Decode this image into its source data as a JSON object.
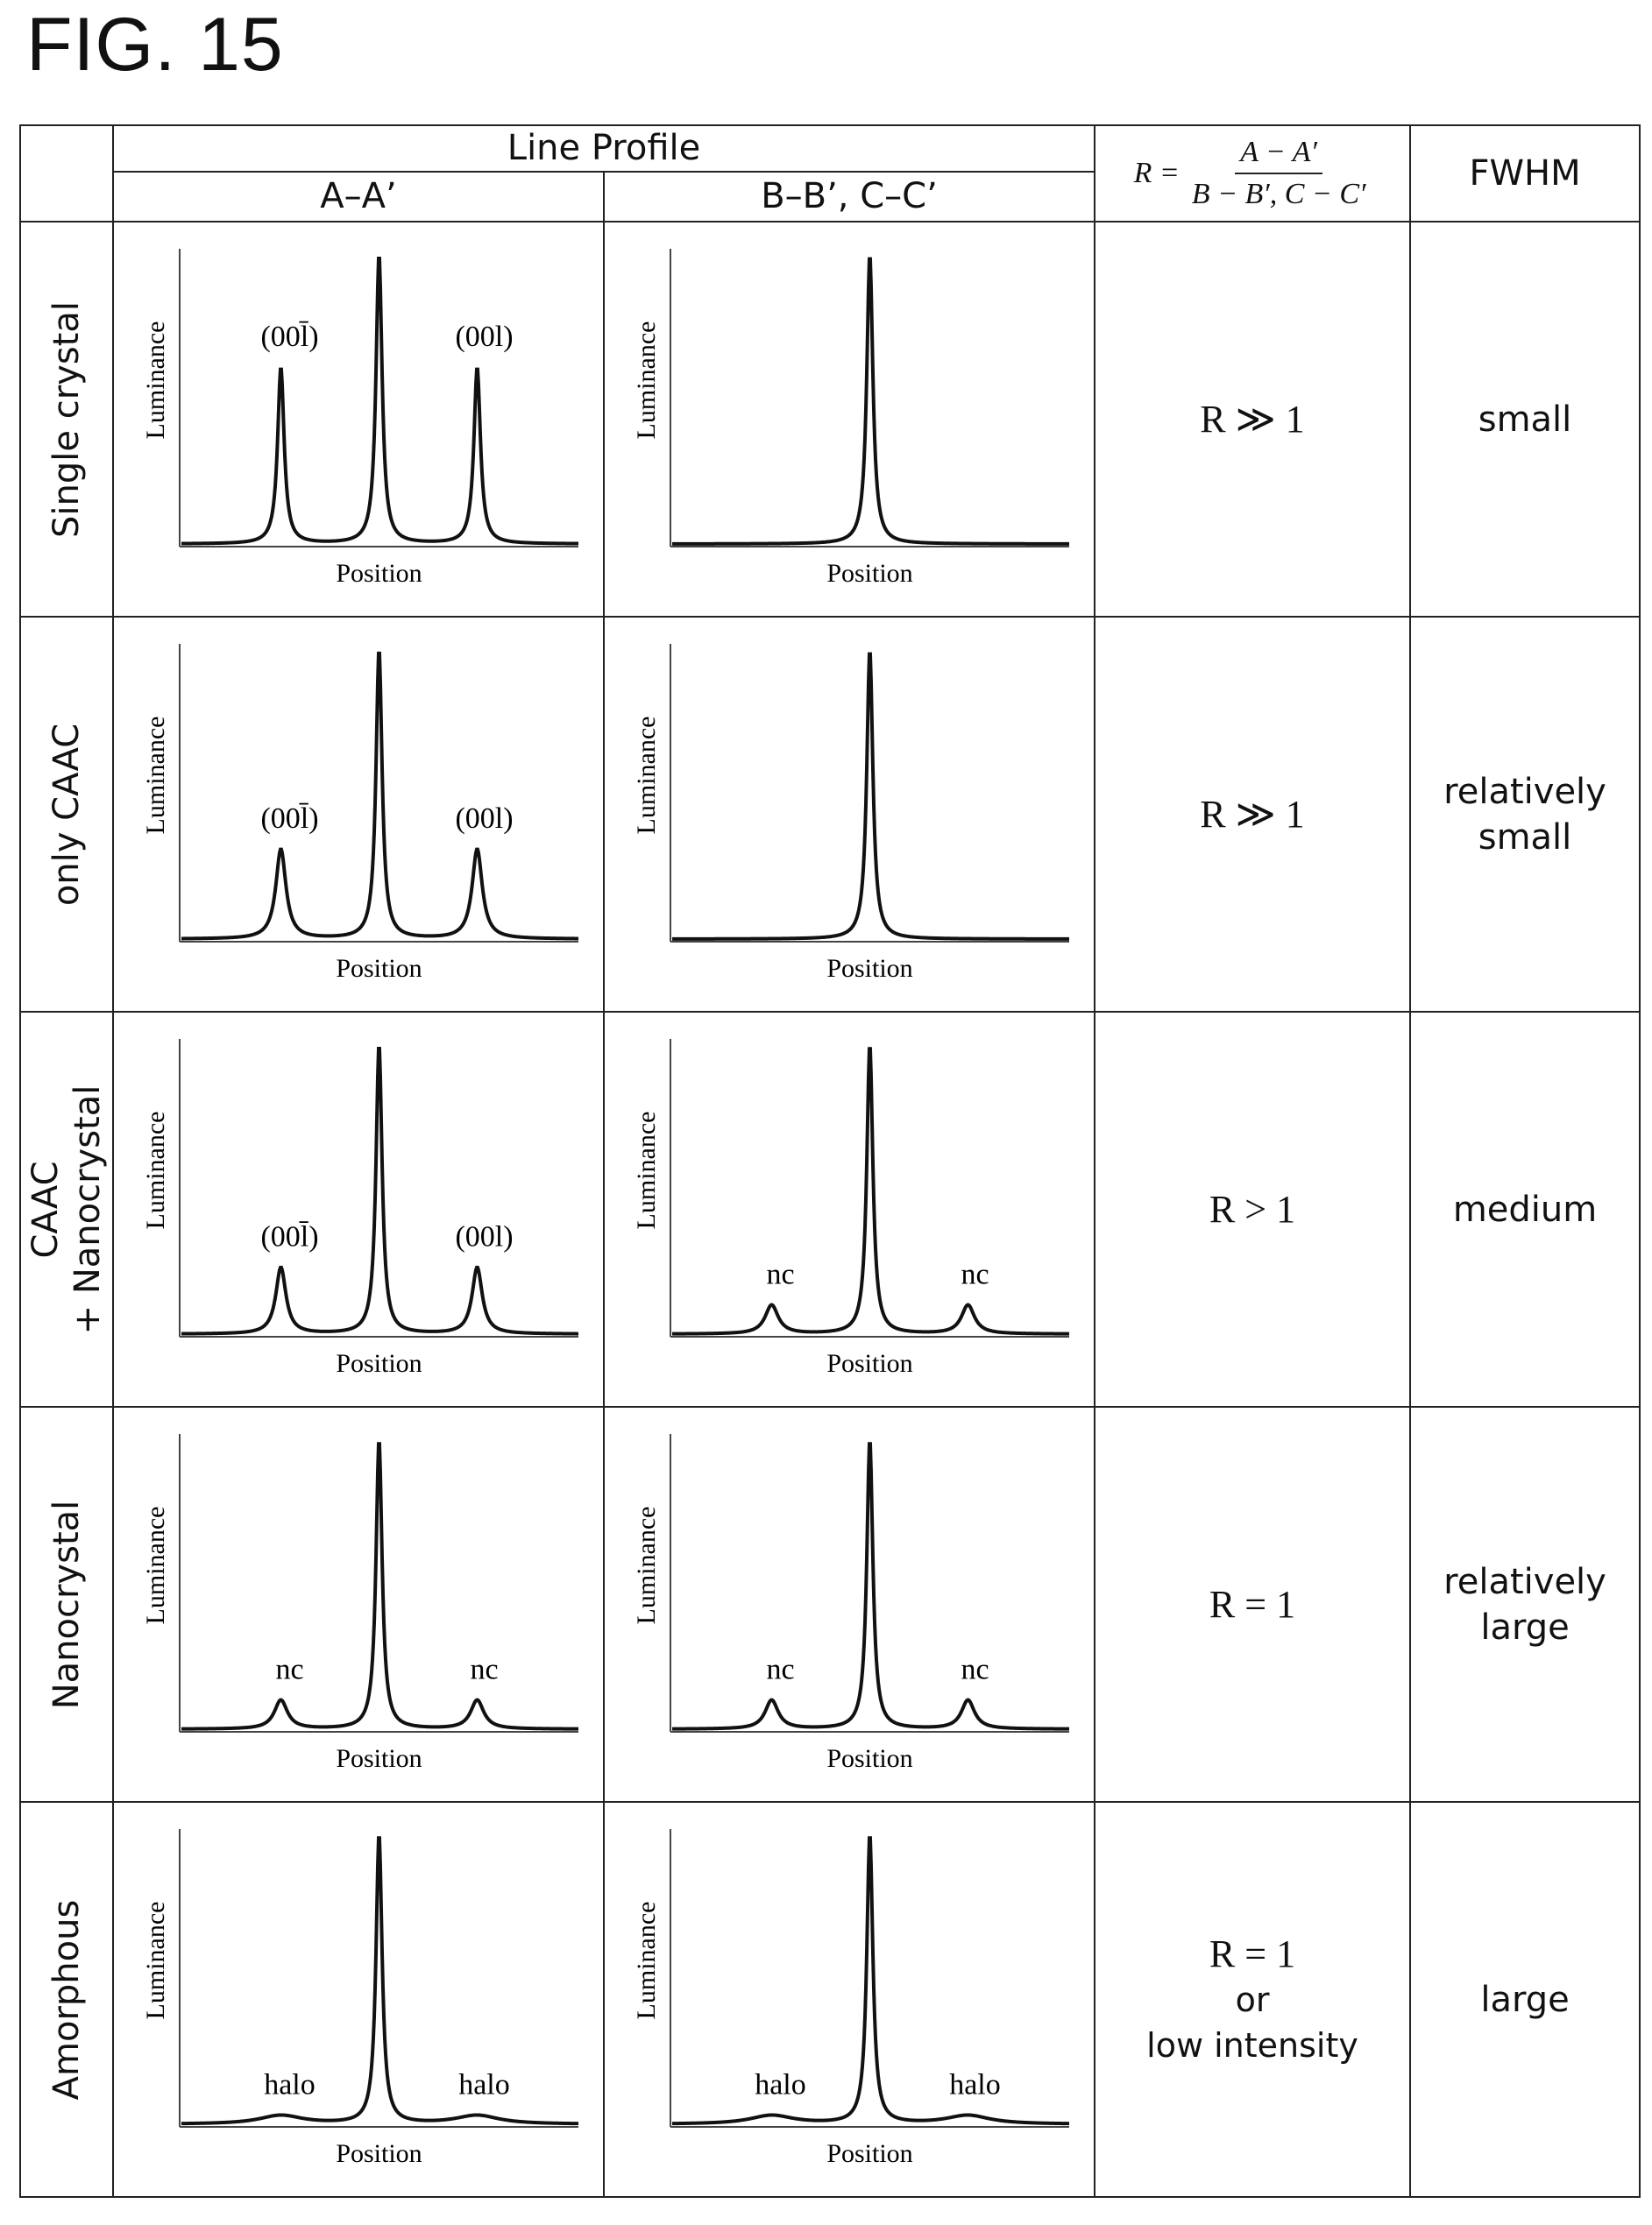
{
  "figure_title": "FIG. 15",
  "header": {
    "line_profile": "Line Profile",
    "col_aa": "A–A’",
    "col_bb": "B–B’, C–C’",
    "ratio_lhs": "R =",
    "ratio_num": "A − A′",
    "ratio_den": "B − B′, C − C′",
    "fwhm": "FWHM"
  },
  "axis": {
    "ylabel": "Luminance",
    "xlabel": "Position"
  },
  "rows": [
    {
      "label_lines": [
        "Single crystal"
      ],
      "aa": {
        "side_peaks": 0.61,
        "side_width": "narrow",
        "labels": [
          "(00l̄)",
          "(00l)"
        ]
      },
      "bb": {
        "side_peaks": 0,
        "side_width": "none",
        "labels": []
      },
      "ratio_lines": [
        "R ≫ 1"
      ],
      "fwhm_lines": [
        "small"
      ]
    },
    {
      "label_lines": [
        "only CAAC"
      ],
      "aa": {
        "side_peaks": 0.31,
        "side_width": "medium",
        "labels": [
          "(00l̄)",
          "(00l)"
        ]
      },
      "bb": {
        "side_peaks": 0,
        "side_width": "none",
        "labels": []
      },
      "ratio_lines": [
        "R ≫ 1"
      ],
      "fwhm_lines": [
        "relatively",
        "small"
      ]
    },
    {
      "label_lines": [
        "CAAC",
        "+ Nanocrystal"
      ],
      "aa": {
        "side_peaks": 0.23,
        "side_width": "medium",
        "labels": [
          "(00l̄)",
          "(00l)"
        ]
      },
      "bb": {
        "side_peaks": 0.1,
        "side_width": "wide",
        "labels": [
          "nc",
          "nc"
        ]
      },
      "ratio_lines": [
        "R > 1"
      ],
      "fwhm_lines": [
        "medium"
      ]
    },
    {
      "label_lines": [
        "Nanocrystal"
      ],
      "aa": {
        "side_peaks": 0.1,
        "side_width": "wide",
        "labels": [
          "nc",
          "nc"
        ]
      },
      "bb": {
        "side_peaks": 0.1,
        "side_width": "wide",
        "labels": [
          "nc",
          "nc"
        ]
      },
      "ratio_lines": [
        "R = 1"
      ],
      "fwhm_lines": [
        "relatively",
        "large"
      ]
    },
    {
      "label_lines": [
        "Amorphous"
      ],
      "aa": {
        "side_peaks": 0.03,
        "side_width": "very-wide",
        "labels": [
          "halo",
          "halo"
        ]
      },
      "bb": {
        "side_peaks": 0.03,
        "side_width": "very-wide",
        "labels": [
          "halo",
          "halo"
        ]
      },
      "ratio_lines": [
        "R = 1",
        "or",
        "low intensity"
      ],
      "fwhm_lines": [
        "large"
      ]
    }
  ]
}
